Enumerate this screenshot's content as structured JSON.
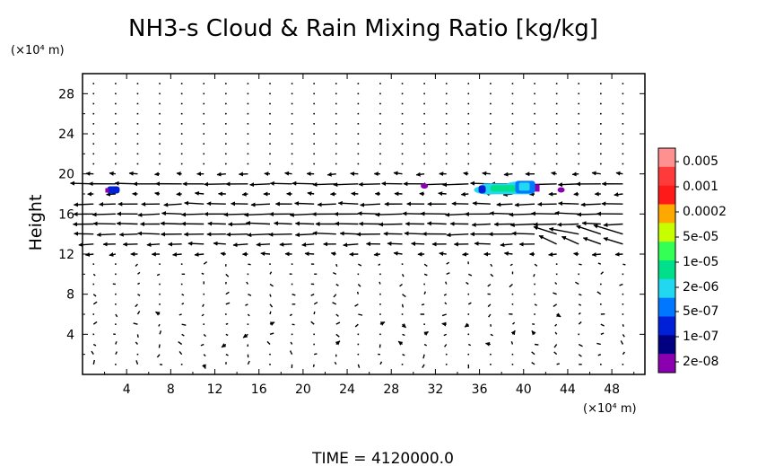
{
  "chart_data": {
    "type": "vector-contour",
    "title": "NH3-s Cloud & Rain Mixing Ratio [kg/kg]",
    "ylabel": "Height",
    "y_unit_label": "(×10⁴ m)",
    "x_unit_label": "(×10⁴ m)",
    "x_range": [
      0,
      51
    ],
    "y_range": [
      0,
      30
    ],
    "x_ticks": [
      "4",
      "8",
      "12",
      "16",
      "20",
      "24",
      "28",
      "32",
      "36",
      "40",
      "44",
      "48"
    ],
    "y_ticks": [
      "4",
      "8",
      "12",
      "16",
      "20",
      "24",
      "28"
    ],
    "legend": {
      "placement": "right",
      "levels": [
        "0.005",
        "0.001",
        "0.0002",
        "5e-05",
        "1e-05",
        "2e-06",
        "5e-07",
        "1e-07",
        "2e-08"
      ],
      "colors": [
        "#ff9090",
        "#ff3a3a",
        "#ff1a1a",
        "#ffa800",
        "#c8ff00",
        "#33ff55",
        "#00e08a",
        "#22d8f0",
        "#0077ff",
        "#0020d8",
        "#000080",
        "#8a00b0"
      ]
    },
    "contours": [
      {
        "x": 2.8,
        "y": 18.4,
        "level": "1e-07"
      },
      {
        "x": 31.0,
        "y": 18.8,
        "level": "2e-08"
      },
      {
        "x": 36.8,
        "y": 18.4,
        "level": "5e-07"
      },
      {
        "x": 38.4,
        "y": 18.5,
        "level": "2e-06"
      },
      {
        "x": 39.6,
        "y": 18.8,
        "level": "5e-07"
      },
      {
        "x": 40.3,
        "y": 18.9,
        "level": "1e-07"
      },
      {
        "x": 43.4,
        "y": 18.4,
        "level": "2e-08"
      }
    ],
    "time_label": "TIME = 4120000.0"
  }
}
